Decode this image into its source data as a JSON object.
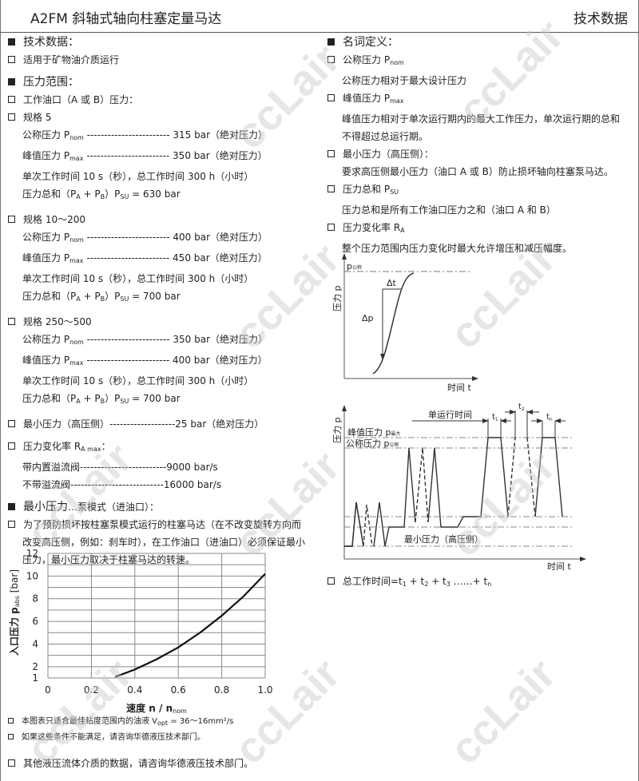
{
  "header": {
    "title": "A2FM 斜轴式轴向柱塞定量马达",
    "tag": "技术数据"
  },
  "left": {
    "h1": "技术数据：",
    "l1": "适用于矿物油介质运行",
    "h2": "压力范围：",
    "l2": "工作油口（A 或 B）压力：",
    "s5": "规格 5",
    "s5a": "公称压力 P",
    "s5a_sub": "nom",
    "s5a_val": " ------------------------ 315 bar（绝对压力）",
    "s5b": "峰值压力 P",
    "s5b_sub": "max",
    "s5b_val": " ------------------------ 350 bar（绝对压力）",
    "s5c": "单次工作时间 10 s（秒），总工作时间 300 h（小时）",
    "s5d": "压力总和（P",
    "s5d_val": " = 630 bar",
    "s10": "规格 10～200",
    "s10a_val": " ------------------------ 400 bar（绝对压力）",
    "s10b_val": " ------------------------ 450 bar（绝对压力）",
    "s10d_val": " = 700 bar",
    "s250": "规格 250～500",
    "s250a_val": " ------------------------ 350 bar（绝对压力）",
    "s250b_val": " ------------------------ 400 bar（绝对压力）",
    "s250d_val": " = 700 bar",
    "minp": "最小压力（高压侧）-------------------25 bar（绝对压力）",
    "ra": "压力变化率 R",
    "ra_sub": "A max",
    "ra_tail": "：",
    "ra1": "带内置溢流阀-------------------------9000 bar/s",
    "ra2": "不带溢流阀---------------------------16000 bar/s",
    "h3": "最小压力",
    "h3_small": "…泵模式（进油口）：",
    "p1": "为了预防损坏按柱塞泵模式运行的柱塞马达（在不改变旋转方向而",
    "p2": "改变高压侧，例如：刹车时），在工作油口（进油口）必须保证最小",
    "p3": "压力，最小压力取决于柱塞马达的转速。",
    "n1": "本图表只适合最佳粘度范围内的油液 V",
    "n1_sub": "opt",
    "n1_tail": " = 36～16mm²/s",
    "n2": "如果这些条件不能满足，请咨询华德液压技术部门。",
    "n3": "其他液压流体介质的数据，请咨询华德液压技术部门。",
    "sumA": "A",
    "sumPlus": " + P",
    "sumB": "B",
    "sumClose": "）P",
    "sumSU": "SU"
  },
  "right": {
    "h": "名词定义：",
    "d1": "公称压力 P",
    "d1_sub": "nom",
    "d1t": "公称压力相对于最大设计压力",
    "d2": "峰值压力 P",
    "d2_sub": "max",
    "d2t1": "峰值压力相对于单次运行期内的最大工作压力，单次运行期的总和",
    "d2t2": "不得超过总运行期。",
    "d3": "最小压力（高压侧）：",
    "d3t": "要求高压侧最小压力（油口 A 或 B）防止损坏轴向柱塞泵马达。",
    "d4": "压力总和 P",
    "d4_sub": "SU",
    "d4t": "压力总和是所有工作油口压力之和（油口 A 和 B）",
    "d5": "压力变化率 R",
    "d5_sub": "A",
    "d5t": "整个压力范围内压力变化时最大允许增压和减压幅度。",
    "total": "总工作时间=t",
    "total_rest": " + t",
    "total_more": " ……+ t"
  },
  "diagram1": {
    "ylabel": "压力 p",
    "xlabel": "时间 t",
    "pnom": "p",
    "pnom_sub": "公称",
    "dt": "Δt",
    "dp": "Δp"
  },
  "diagram2": {
    "ylabel": "压力 p",
    "xlabel": "时间 t",
    "peak": "峰值压力 p",
    "peak_sub": "最大",
    "nom": "公称压力 p",
    "nom_sub": "公称",
    "single": "单运行时间",
    "t1": "t",
    "t2": "t",
    "tn": "t",
    "minp": "最小压力（高压侧）"
  },
  "chart_data": {
    "type": "line",
    "xlabel": "速度 n / n",
    "xlabel_sub": "nom",
    "ylabel": "入口压力 p",
    "ylabel_sub": "abs",
    "ylabel_unit": " [bar]",
    "xlim": [
      0,
      1.0
    ],
    "ylim": [
      1,
      12
    ],
    "xticks": [
      "0",
      "0.2",
      "0.4",
      "0.6",
      "0.8",
      "1.0"
    ],
    "yticks": [
      "1",
      "2",
      "4",
      "6",
      "8",
      "10",
      "12"
    ],
    "grid": true,
    "series": [
      {
        "x": [
          0.31,
          0.4,
          0.5,
          0.6,
          0.7,
          0.8,
          0.9,
          1.0
        ],
        "y": [
          1.1,
          1.75,
          2.65,
          3.7,
          5.0,
          6.5,
          8.2,
          10.2
        ]
      }
    ]
  },
  "watermark": "ccLair"
}
